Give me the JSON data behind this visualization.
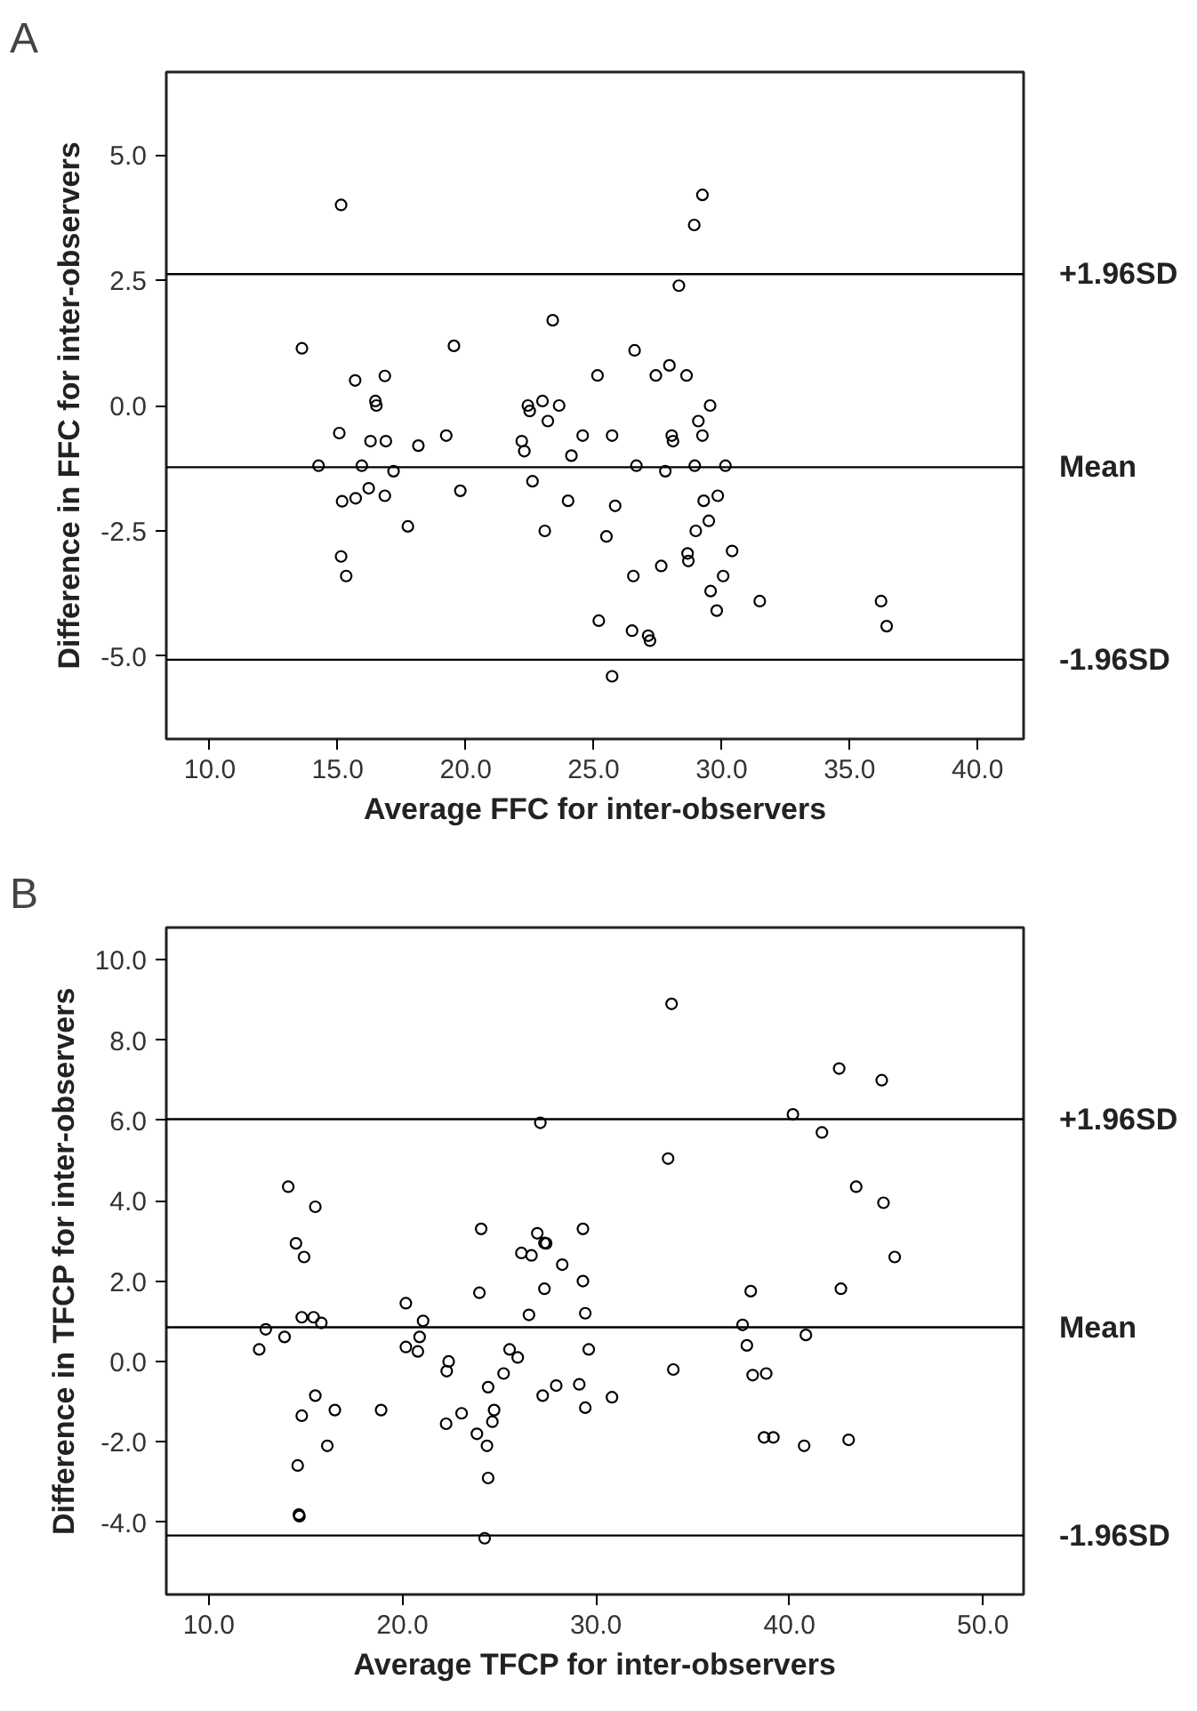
{
  "chart_data": [
    {
      "type": "scatter",
      "title": "A",
      "xlabel": "Average FFC for inter-observers",
      "ylabel": "Difference in FFC for inter-observers",
      "xlim": [
        8.3,
        41.8
      ],
      "ylim": [
        -6.65,
        6.65
      ],
      "xticks": [
        {
          "value": 10,
          "label": "10.0"
        },
        {
          "value": 15,
          "label": "15.0"
        },
        {
          "value": 20,
          "label": "20.0"
        },
        {
          "value": 25,
          "label": "25.0"
        },
        {
          "value": 30,
          "label": "30.0"
        },
        {
          "value": 35,
          "label": "35.0"
        },
        {
          "value": 40,
          "label": "40.0"
        }
      ],
      "yticks": [
        {
          "value": -5,
          "label": "-5.0"
        },
        {
          "value": -2.5,
          "label": "-2.5"
        },
        {
          "value": 0,
          "label": "0.0"
        },
        {
          "value": 2.5,
          "label": "2.5"
        },
        {
          "value": 5,
          "label": "5.0"
        }
      ],
      "grid": false,
      "marker": "circle",
      "ref_lines": [
        {
          "axis": "y",
          "value": 2.62,
          "label": "+1.96SD",
          "color": "#000000"
        },
        {
          "axis": "y",
          "value": -1.23,
          "label": "Mean",
          "color": "#000000"
        },
        {
          "axis": "y",
          "value": -5.07,
          "label": "-1.96SD",
          "color": "#000000"
        }
      ],
      "series": [
        {
          "color": "#000000",
          "x": [
            15.13,
            13.6,
            15.68,
            16.84,
            16.47,
            16.51,
            15.06,
            16.28,
            16.88,
            18.15,
            19.24,
            14.25,
            15.94,
            17.18,
            15.17,
            15.7,
            16.21,
            16.84,
            17.74,
            19.79,
            19.54,
            15.13,
            15.33,
            22.19,
            22.29,
            22.43,
            22.5,
            23.0,
            23.21,
            23.65,
            23.4,
            22.61,
            23.09,
            24.0,
            24.13,
            24.57,
            25.15,
            25.2,
            25.5,
            29.25,
            28.93,
            28.33,
            26.6,
            27.43,
            27.96,
            28.63,
            25.72,
            29.55,
            29.09,
            29.25,
            28.05,
            28.1,
            26.67,
            27.8,
            28.95,
            30.15,
            25.84,
            29.3,
            29.85,
            28.99,
            29.5,
            30.41,
            28.67,
            28.7,
            27.64,
            26.55,
            30.06,
            29.57,
            29.81,
            31.49,
            36.23,
            36.45,
            26.5,
            27.13,
            27.2,
            25.72
          ],
          "values": [
            4.0,
            1.14,
            0.5,
            0.59,
            0.09,
            0.0,
            -0.55,
            -0.71,
            -0.71,
            -0.8,
            -0.6,
            -1.2,
            -1.2,
            -1.31,
            -1.91,
            -1.85,
            -1.65,
            -1.8,
            -2.41,
            -1.7,
            1.19,
            -3.01,
            -3.4,
            -0.71,
            -0.91,
            0.0,
            -0.11,
            0.09,
            -0.31,
            0.0,
            1.7,
            -1.51,
            -2.5,
            -1.9,
            -1.0,
            -0.6,
            0.6,
            -4.29,
            -2.61,
            4.2,
            3.6,
            2.39,
            1.1,
            0.6,
            0.8,
            0.6,
            -0.6,
            0.0,
            -0.31,
            -0.6,
            -0.6,
            -0.71,
            -1.2,
            -1.31,
            -1.2,
            -1.2,
            -2.0,
            -1.9,
            -1.8,
            -2.5,
            -2.3,
            -2.9,
            -2.95,
            -3.1,
            -3.2,
            -3.4,
            -3.4,
            -3.7,
            -4.09,
            -3.9,
            -3.9,
            -4.4,
            -4.49,
            -4.59,
            -4.69,
            -5.4
          ]
        }
      ]
    },
    {
      "type": "scatter",
      "title": "B",
      "xlabel": "Average TFCP for inter-observers",
      "ylabel": "Difference in TFCP for inter-observers",
      "xlim": [
        7.8,
        52.1
      ],
      "ylim": [
        -5.8,
        10.8
      ],
      "xticks": [
        {
          "value": 10,
          "label": "10.0"
        },
        {
          "value": 20,
          "label": "20.0"
        },
        {
          "value": 30,
          "label": "30.0"
        },
        {
          "value": 40,
          "label": "40.0"
        },
        {
          "value": 50,
          "label": "50.0"
        }
      ],
      "yticks": [
        {
          "value": -4,
          "label": "-4.0"
        },
        {
          "value": -2,
          "label": "-2.0"
        },
        {
          "value": 0,
          "label": "0.0"
        },
        {
          "value": 2,
          "label": "2.0"
        },
        {
          "value": 4,
          "label": "4.0"
        },
        {
          "value": 6,
          "label": "6.0"
        },
        {
          "value": 8,
          "label": "8.0"
        },
        {
          "value": 10,
          "label": "10.0"
        }
      ],
      "grid": false,
      "marker": "circle",
      "ref_lines": [
        {
          "axis": "y",
          "value": 6.03,
          "label": "+1.96SD",
          "color": "#000000"
        },
        {
          "axis": "y",
          "value": 0.85,
          "label": "Mean",
          "color": "#000000"
        },
        {
          "axis": "y",
          "value": -4.33,
          "label": "-1.96SD",
          "color": "#000000"
        }
      ],
      "series": [
        {
          "color": "#000000",
          "x": [
            14.1,
            15.5,
            14.5,
            14.92,
            14.8,
            15.41,
            15.81,
            12.94,
            12.6,
            13.91,
            15.5,
            14.8,
            16.51,
            14.59,
            16.12,
            14.65,
            14.68,
            18.9,
            20.18,
            20.18,
            20.8,
            20.89,
            21.07,
            22.39,
            22.29,
            22.26,
            23.06,
            23.85,
            24.37,
            24.43,
            24.25,
            24.07,
            23.98,
            24.43,
            24.74,
            24.65,
            25.23,
            25.54,
            25.96,
            26.15,
            26.67,
            26.97,
            27.34,
            27.43,
            27.13,
            26.54,
            27.34,
            28.26,
            27.25,
            27.95,
            29.14,
            29.33,
            29.33,
            29.45,
            29.63,
            29.45,
            30.83,
            33.91,
            33.73,
            34.0,
            40.18,
            42.57,
            44.77,
            41.68,
            43.45,
            44.86,
            45.44,
            42.66,
            38.0,
            37.58,
            40.85,
            37.8,
            38.1,
            38.8,
            38.69,
            39.17,
            40.76,
            43.06
          ],
          "values": [
            4.35,
            3.85,
            2.94,
            2.6,
            1.1,
            1.1,
            0.96,
            0.8,
            0.3,
            0.61,
            -0.85,
            -1.35,
            -1.21,
            -2.59,
            -2.1,
            -3.81,
            -3.85,
            -1.21,
            1.45,
            0.36,
            0.25,
            0.61,
            1.01,
            0.0,
            -0.24,
            -1.55,
            -1.29,
            -1.8,
            -2.1,
            -2.9,
            -4.4,
            3.3,
            1.71,
            -0.64,
            -1.21,
            -1.5,
            -0.3,
            0.3,
            0.1,
            2.7,
            2.64,
            3.19,
            2.95,
            2.94,
            5.94,
            1.16,
            1.81,
            2.41,
            -0.85,
            -0.6,
            -0.57,
            3.3,
            2.0,
            1.2,
            0.3,
            -1.15,
            -0.89,
            8.9,
            5.05,
            -0.2,
            6.15,
            7.29,
            7.0,
            5.7,
            4.35,
            3.95,
            2.6,
            1.81,
            1.75,
            0.91,
            0.66,
            0.4,
            -0.34,
            -0.3,
            -1.89,
            -1.89,
            -2.1,
            -1.95
          ]
        }
      ]
    }
  ]
}
